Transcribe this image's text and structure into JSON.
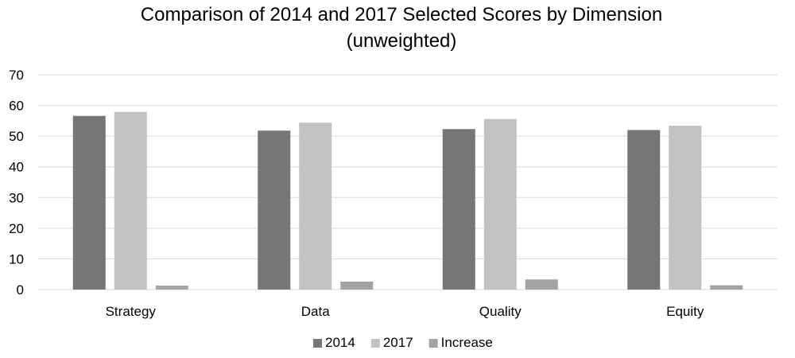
{
  "chart_data": {
    "type": "bar",
    "title_lines": [
      "Comparison of 2014 and 2017 Selected Scores by Dimension",
      "(unweighted)"
    ],
    "xlabel": "",
    "ylabel": "",
    "categories": [
      "Strategy",
      "Data",
      "Quality",
      "Equity"
    ],
    "series": [
      {
        "name": "2014",
        "color": "#767676",
        "values": [
          56.6,
          51.8,
          52.3,
          52.0
        ]
      },
      {
        "name": "2017",
        "color": "#c2c2c2",
        "values": [
          57.9,
          54.4,
          55.6,
          53.4
        ]
      },
      {
        "name": "Increase",
        "color": "#a3a3a3",
        "values": [
          1.3,
          2.6,
          3.3,
          1.4
        ]
      }
    ],
    "ylim": [
      0,
      70
    ],
    "yticks": [
      0,
      10,
      20,
      30,
      40,
      50,
      60,
      70
    ],
    "grid": true,
    "legend_position": "bottom"
  }
}
